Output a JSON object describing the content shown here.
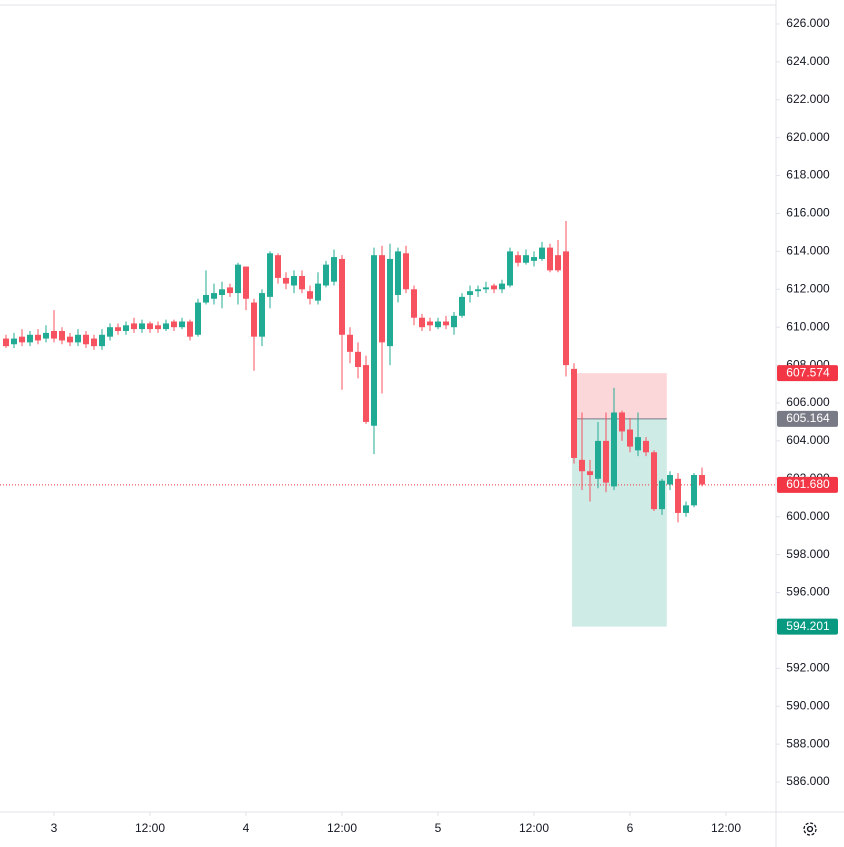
{
  "chart_data": {
    "type": "candlestick",
    "x": [
      -6,
      -5,
      -4,
      -3,
      -2,
      -1,
      0,
      1,
      2,
      3,
      4,
      5,
      6,
      7,
      8,
      9,
      10,
      11,
      12,
      13,
      14,
      15,
      16,
      17,
      18,
      19,
      20,
      21,
      22,
      23,
      24,
      25,
      26,
      27,
      28,
      29,
      30,
      31,
      32,
      33,
      34,
      35,
      36,
      37,
      38,
      39,
      40,
      41,
      42,
      43,
      44,
      45,
      46,
      47,
      48,
      49,
      50,
      51,
      52,
      53,
      54,
      55,
      56,
      57,
      58,
      59,
      60,
      61,
      62,
      63,
      64,
      65,
      66,
      67,
      68,
      69,
      70,
      71,
      72,
      73,
      74,
      75,
      76,
      77,
      78,
      79,
      80,
      81
    ],
    "open": [
      609.4,
      609.1,
      609.5,
      609.2,
      609.6,
      609.4,
      609.8,
      609.8,
      609.5,
      609.2,
      609.6,
      609.4,
      609.0,
      609.5,
      610.0,
      609.8,
      610.2,
      609.9,
      610.2,
      610.1,
      609.9,
      610.3,
      610.0,
      610.3,
      609.6,
      611.3,
      611.5,
      611.7,
      612.1,
      611.8,
      613.2,
      611.3,
      609.5,
      611.6,
      613.8,
      612.6,
      612.2,
      612.7,
      611.9,
      611.4,
      612.2,
      612.4,
      613.6,
      609.6,
      608.7,
      608.0,
      604.8,
      613.8,
      609.0,
      611.7,
      613.9,
      612.0,
      610.5,
      610.3,
      610.0,
      610.3,
      610.0,
      610.6,
      611.7,
      611.9,
      612.0,
      612.2,
      612.0,
      612.2,
      613.8,
      613.4,
      613.5,
      613.6,
      614.2,
      613.8,
      614.0,
      607.8,
      603.0,
      602.4,
      602.0,
      604.0,
      601.6,
      605.5,
      604.6,
      603.5,
      604.0,
      603.4,
      600.4,
      601.7,
      602.0,
      600.2,
      600.6,
      602.2
    ],
    "high": [
      609.6,
      609.7,
      609.9,
      609.8,
      609.9,
      610.1,
      610.9,
      610.0,
      609.7,
      609.9,
      609.8,
      609.6,
      609.9,
      610.2,
      610.2,
      610.3,
      610.5,
      610.4,
      610.3,
      610.3,
      610.4,
      610.4,
      610.5,
      610.4,
      611.5,
      613.0,
      612.3,
      612.4,
      612.3,
      613.4,
      613.2,
      611.5,
      612.0,
      614.0,
      613.9,
      612.9,
      613.0,
      613.0,
      612.2,
      612.9,
      613.5,
      614.1,
      613.8,
      610.0,
      609.2,
      608.5,
      614.2,
      614.3,
      614.4,
      614.2,
      614.3,
      612.2,
      610.7,
      610.5,
      610.5,
      610.6,
      610.8,
      611.8,
      612.2,
      612.2,
      612.4,
      612.3,
      612.5,
      614.2,
      614.0,
      614.1,
      614.0,
      614.5,
      614.4,
      614.6,
      615.6,
      608.1,
      605.5,
      603.0,
      605.0,
      605.5,
      606.8,
      605.6,
      605.2,
      605.5,
      604.2,
      603.5,
      602.0,
      602.4,
      602.3,
      600.8,
      602.3,
      602.6
    ],
    "low": [
      608.9,
      608.9,
      609.0,
      609.0,
      609.1,
      609.2,
      609.2,
      609.1,
      609.0,
      609.0,
      608.9,
      608.8,
      608.8,
      609.3,
      609.6,
      609.6,
      609.7,
      609.7,
      609.7,
      609.7,
      609.8,
      609.8,
      609.9,
      609.3,
      609.5,
      611.2,
      611.2,
      611.0,
      611.6,
      611.2,
      610.9,
      607.7,
      609.0,
      611.0,
      612.3,
      612.0,
      611.8,
      611.8,
      611.2,
      611.2,
      612.1,
      612.2,
      606.7,
      608.1,
      607.3,
      604.9,
      603.3,
      606.5,
      608.0,
      611.3,
      611.8,
      610.1,
      609.8,
      609.8,
      609.9,
      609.9,
      609.6,
      610.5,
      611.3,
      611.6,
      611.8,
      611.8,
      611.8,
      612.1,
      613.2,
      613.3,
      613.2,
      613.5,
      612.9,
      612.9,
      607.4,
      602.8,
      601.4,
      600.8,
      601.5,
      601.3,
      601.4,
      604.0,
      603.4,
      603.2,
      603.2,
      600.3,
      600.1,
      601.4,
      599.7,
      600.0,
      600.5,
      601.6
    ],
    "close": [
      609.0,
      609.4,
      609.2,
      609.6,
      609.3,
      609.7,
      609.4,
      609.3,
      609.2,
      609.6,
      609.1,
      609.0,
      609.6,
      610.0,
      609.8,
      610.1,
      609.9,
      610.2,
      609.9,
      609.9,
      610.2,
      610.0,
      610.3,
      609.5,
      611.3,
      611.7,
      611.8,
      612.0,
      611.8,
      613.3,
      611.5,
      609.5,
      611.8,
      613.9,
      612.6,
      612.3,
      612.7,
      612.0,
      611.5,
      612.3,
      613.3,
      613.7,
      609.6,
      608.7,
      607.9,
      605.0,
      613.8,
      609.2,
      613.6,
      614.0,
      612.0,
      610.5,
      610.0,
      610.1,
      610.3,
      610.1,
      610.6,
      611.6,
      611.9,
      612.0,
      612.1,
      612.0,
      612.3,
      614.0,
      613.4,
      613.8,
      613.7,
      614.2,
      613.0,
      613.0,
      608.0,
      603.1,
      602.4,
      602.2,
      604.0,
      601.8,
      605.5,
      604.5,
      603.7,
      604.2,
      603.4,
      600.4,
      601.9,
      602.2,
      600.2,
      600.6,
      602.2,
      601.7
    ],
    "up_color": "#22ab94",
    "down_color": "#f7525f",
    "xlim": [
      -6.75,
      90.25
    ],
    "xticks": [
      {
        "value": 0,
        "label": "3"
      },
      {
        "value": 12,
        "label": "12:00"
      },
      {
        "value": 24,
        "label": "4"
      },
      {
        "value": 36,
        "label": "12:00"
      },
      {
        "value": 48,
        "label": "5"
      },
      {
        "value": 60,
        "label": "12:00"
      },
      {
        "value": 72,
        "label": "6"
      },
      {
        "value": 84,
        "label": "12:00"
      }
    ],
    "ylim": [
      584.42,
      627.0
    ],
    "yticks": [
      {
        "value": 586,
        "label": "586.000"
      },
      {
        "value": 588,
        "label": "588.000"
      },
      {
        "value": 590,
        "label": "590.000"
      },
      {
        "value": 592,
        "label": "592.000"
      },
      {
        "value": 594,
        "label": "594.000"
      },
      {
        "value": 596,
        "label": "596.000"
      },
      {
        "value": 598,
        "label": "598.000"
      },
      {
        "value": 600,
        "label": "600.000"
      },
      {
        "value": 602,
        "label": "602.000"
      },
      {
        "value": 604,
        "label": "604.000"
      },
      {
        "value": 606,
        "label": "606.000"
      },
      {
        "value": 608,
        "label": "608.000"
      },
      {
        "value": 610,
        "label": "610.000"
      },
      {
        "value": 612,
        "label": "612.000"
      },
      {
        "value": 614,
        "label": "614.000"
      },
      {
        "value": 616,
        "label": "616.000"
      },
      {
        "value": 618,
        "label": "618.000"
      },
      {
        "value": 620,
        "label": "620.000"
      },
      {
        "value": 622,
        "label": "622.000"
      },
      {
        "value": 624,
        "label": "624.000"
      },
      {
        "value": 626,
        "label": "626.000"
      }
    ],
    "position": {
      "stop": 607.574,
      "entry": 605.164,
      "target": 594.201,
      "start": 64.75,
      "end": 76.6,
      "stop_color": "#f23645",
      "entry_color": "#787b86",
      "target_color": "#089981"
    },
    "last_price": {
      "value": 601.68,
      "label": "601.680",
      "color": "#f23645"
    }
  }
}
